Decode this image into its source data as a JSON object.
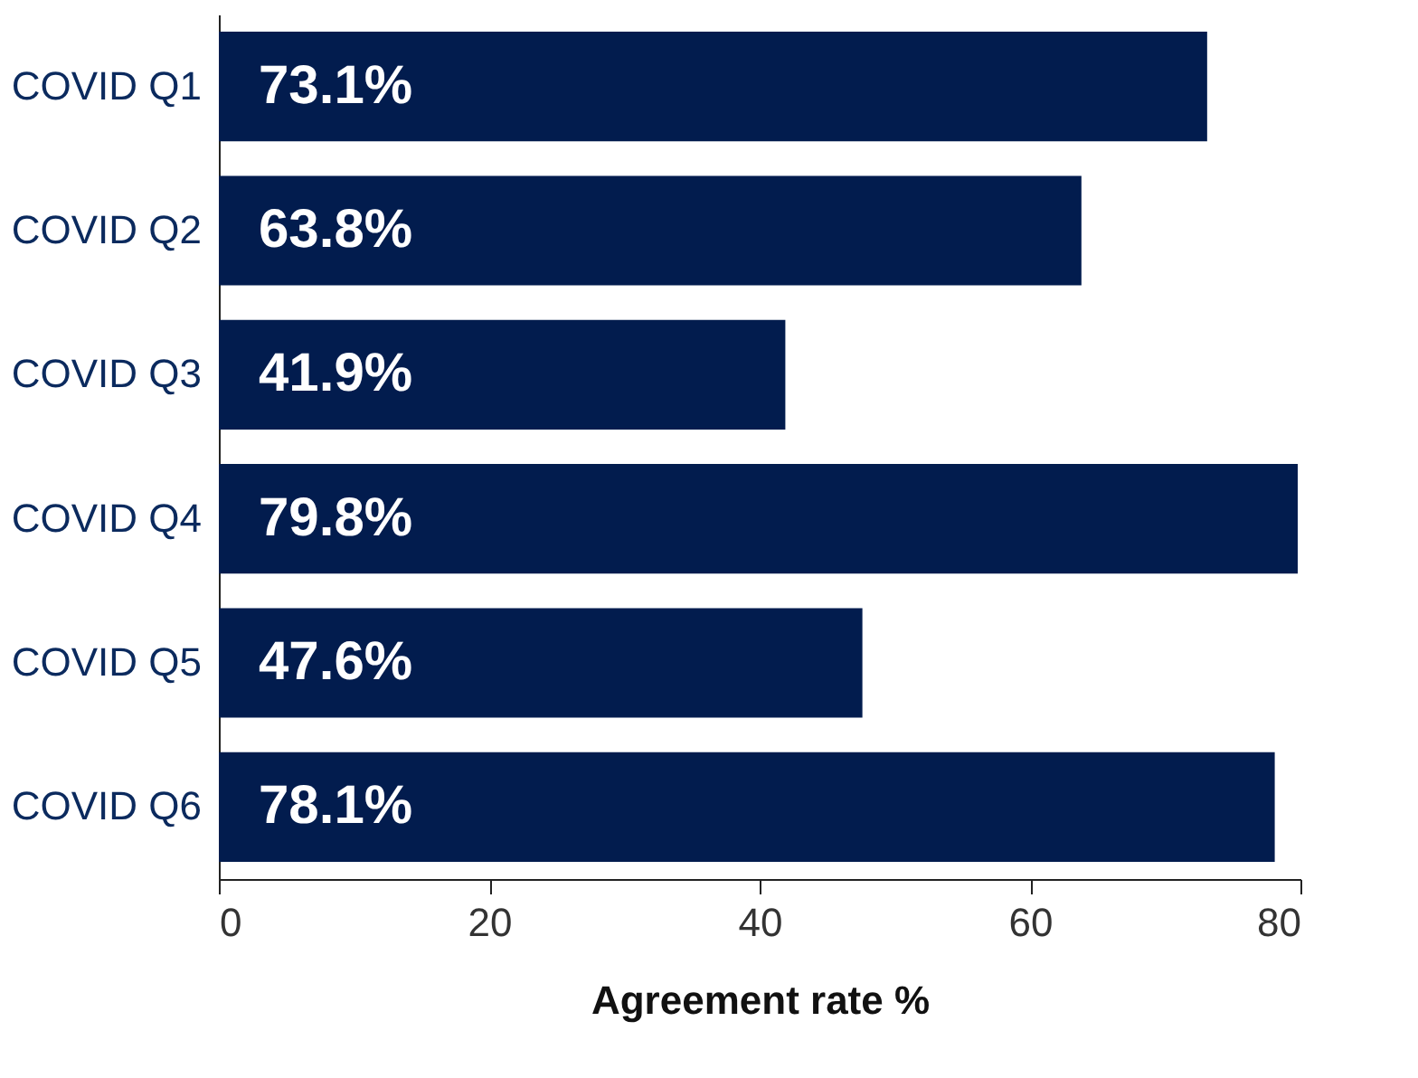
{
  "chart_data": {
    "type": "bar",
    "orientation": "horizontal",
    "xlabel": "Agreement rate %",
    "categories": [
      "COVID Q1",
      "COVID Q2",
      "COVID Q3",
      "COVID Q4",
      "COVID Q5",
      "COVID Q6"
    ],
    "values": [
      73.1,
      63.8,
      41.9,
      79.8,
      47.6,
      78.1
    ],
    "value_labels": [
      "73.1%",
      "63.8%",
      "41.9%",
      "79.8%",
      "47.6%",
      "78.1%"
    ],
    "color": "#021c4e",
    "xlim": [
      0,
      80
    ],
    "xticks": [
      0,
      20,
      40,
      60,
      80
    ],
    "grid": false
  }
}
